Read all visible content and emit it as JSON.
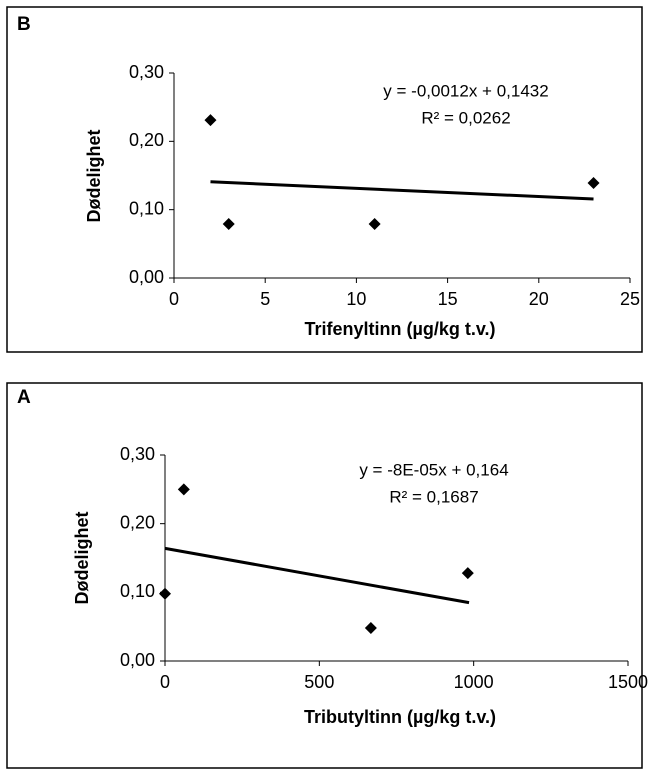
{
  "chart_data": [
    {
      "type": "scatter",
      "label": "B",
      "x_label": "Trifenyltinn (µg/kg t.v.)",
      "y_label": "Dødelighet",
      "annotations": [
        "y = -0,0012x + 0,1432",
        "R² = 0,0262"
      ],
      "x": [
        2,
        3,
        11,
        23
      ],
      "values": [
        0.231,
        0.079,
        0.079,
        0.139
      ],
      "color": "#000000",
      "trendline": {
        "x": [
          2,
          23
        ],
        "values": [
          0.1408,
          0.1156
        ]
      },
      "xlim": [
        0,
        25
      ],
      "xticks": [
        0,
        5,
        10,
        15,
        20,
        25
      ],
      "ylim": [
        0,
        0.3
      ],
      "yticks": [
        {
          "value": 0,
          "label": "0,00"
        },
        {
          "value": 0.1,
          "label": "0,10"
        },
        {
          "value": 0.2,
          "label": "0,20"
        },
        {
          "value": 0.3,
          "label": "0,30"
        }
      ]
    },
    {
      "type": "scatter",
      "label": "A",
      "x_label": "Tributyltinn (µg/kg t.v.)",
      "y_label": "Dødelighet",
      "annotations": [
        "y = -8E-05x + 0,164",
        "R² = 0,1687"
      ],
      "x": [
        0,
        61,
        667,
        981
      ],
      "values": [
        0.098,
        0.25,
        0.048,
        0.128
      ],
      "color": "#000000",
      "trendline": {
        "x": [
          0,
          985
        ],
        "values": [
          0.164,
          0.085
        ]
      },
      "xlim": [
        0,
        1500
      ],
      "xticks": [
        0,
        500,
        1000,
        1500
      ],
      "ylim": [
        0,
        0.3
      ],
      "yticks": [
        {
          "value": 0,
          "label": "0,00"
        },
        {
          "value": 0.1,
          "label": "0,10"
        },
        {
          "value": 0.2,
          "label": "0,20"
        },
        {
          "value": 0.3,
          "label": "0,30"
        }
      ]
    }
  ]
}
